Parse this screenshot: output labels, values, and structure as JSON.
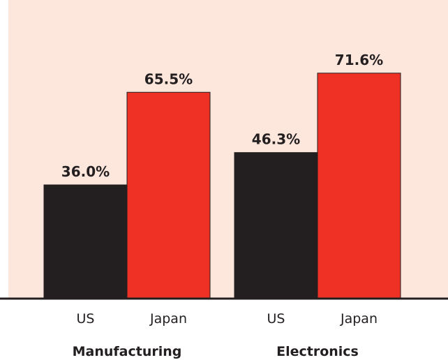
{
  "colors": {
    "background": "#fde6dc",
    "us_bar": "#231f20",
    "japan_bar": "#ee3124",
    "text": "#231f20",
    "axis": "#231f20"
  },
  "chart_data": {
    "type": "bar",
    "title": "",
    "xlabel": "",
    "ylabel": "",
    "ylim": [
      0,
      80
    ],
    "grid": false,
    "value_format": "percent_1dp",
    "groups": [
      {
        "name": "Manufacturing",
        "bars": [
          {
            "category": "US",
            "value": 36.0,
            "label": "36.0%",
            "color_key": "us_bar"
          },
          {
            "category": "Japan",
            "value": 65.5,
            "label": "65.5%",
            "color_key": "japan_bar"
          }
        ]
      },
      {
        "name": "Electronics",
        "bars": [
          {
            "category": "US",
            "value": 46.3,
            "label": "46.3%",
            "color_key": "us_bar"
          },
          {
            "category": "Japan",
            "value": 71.6,
            "label": "71.6%",
            "color_key": "japan_bar"
          }
        ]
      }
    ]
  }
}
